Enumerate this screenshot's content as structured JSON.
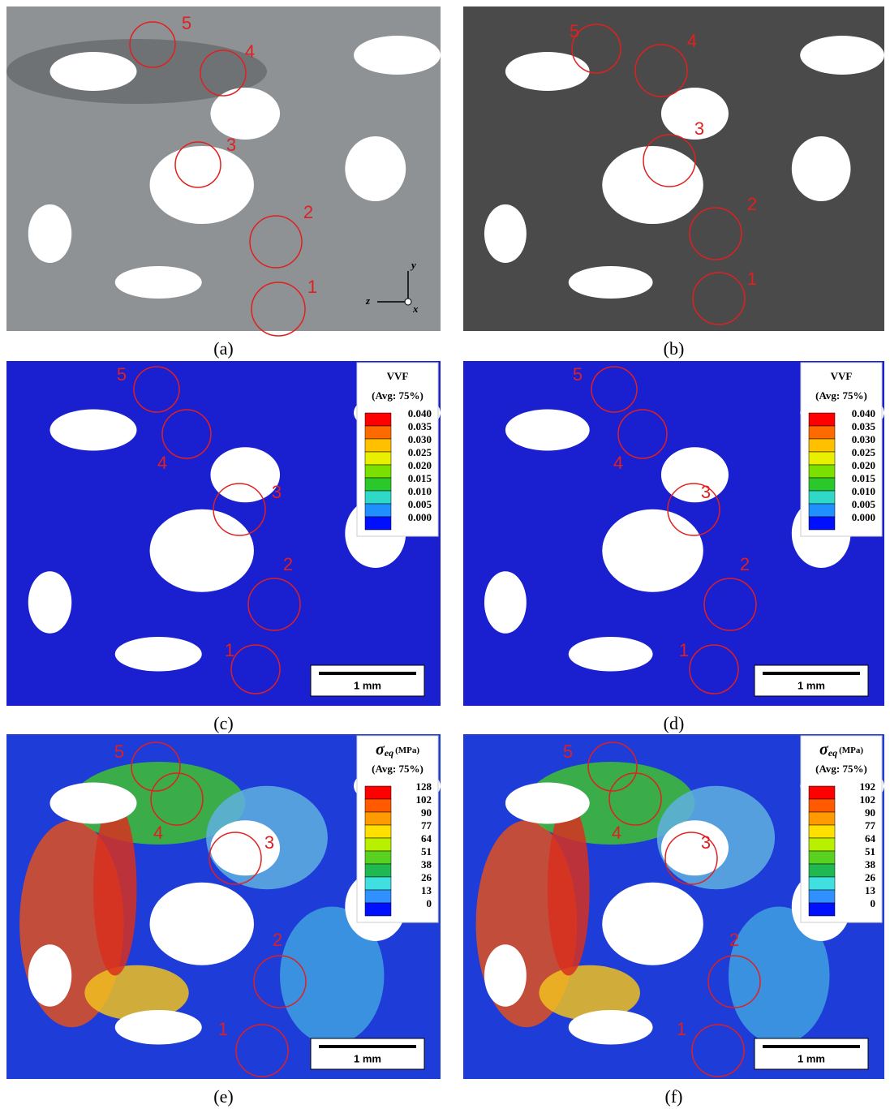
{
  "panels": [
    {
      "label": "(a)",
      "circle_labels": [
        "1",
        "2",
        "3",
        "4",
        "5"
      ],
      "axes": {
        "y": "y",
        "z": "z",
        "x": "x"
      }
    },
    {
      "label": "(b)",
      "circle_labels": [
        "1",
        "2",
        "3",
        "4",
        "5"
      ]
    },
    {
      "label": "(c)",
      "circle_labels": [
        "1",
        "2",
        "3",
        "4",
        "5"
      ],
      "legend": {
        "title": "VVF",
        "subtitle": "(Avg: 75%)",
        "entries": [
          "0.040",
          "0.035",
          "0.030",
          "0.025",
          "0.020",
          "0.015",
          "0.010",
          "0.005",
          "0.000"
        ]
      },
      "scale_bar": "1 mm"
    },
    {
      "label": "(d)",
      "circle_labels": [
        "1",
        "2",
        "3",
        "4",
        "5"
      ],
      "legend": {
        "title": "VVF",
        "subtitle": "(Avg: 75%)",
        "entries": [
          "0.040",
          "0.035",
          "0.030",
          "0.025",
          "0.020",
          "0.015",
          "0.010",
          "0.005",
          "0.000"
        ]
      },
      "scale_bar": "1 mm"
    },
    {
      "label": "(e)",
      "circle_labels": [
        "1",
        "2",
        "3",
        "4",
        "5"
      ],
      "legend": {
        "title_symbol": "σ",
        "title_subscript": "eq",
        "title_unit": "(MPa)",
        "subtitle": "(Avg: 75%)",
        "entries": [
          "128",
          "102",
          "90",
          "77",
          "64",
          "51",
          "38",
          "26",
          "13",
          "0"
        ]
      },
      "scale_bar": "1 mm"
    },
    {
      "label": "(f)",
      "circle_labels": [
        "1",
        "2",
        "3",
        "4",
        "5"
      ],
      "legend": {
        "title_symbol": "σ",
        "title_subscript": "eq",
        "title_unit": "(MPa)",
        "subtitle": "(Avg: 75%)",
        "entries": [
          "192",
          "102",
          "90",
          "77",
          "64",
          "51",
          "38",
          "26",
          "13",
          "0"
        ]
      },
      "scale_bar": "1 mm"
    }
  ]
}
